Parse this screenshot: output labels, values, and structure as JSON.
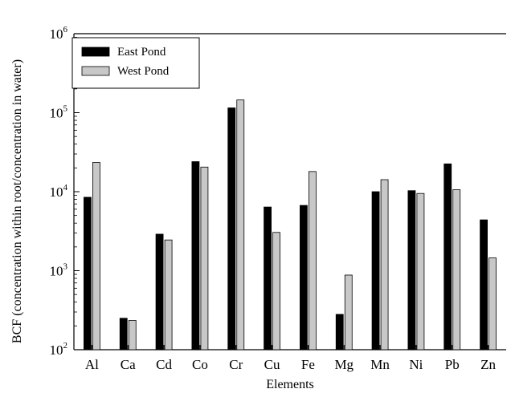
{
  "chart_data": {
    "type": "bar",
    "xlabel": "Elements",
    "ylabel": "BCF (concentration within root/concentration in water)",
    "yscale": "log",
    "ylim": [
      100,
      1000000
    ],
    "yticks": [
      {
        "base": "10",
        "exp": "2"
      },
      {
        "base": "10",
        "exp": "3"
      },
      {
        "base": "10",
        "exp": "4"
      },
      {
        "base": "10",
        "exp": "5"
      },
      {
        "base": "10",
        "exp": "6"
      }
    ],
    "legend_position": "top-left",
    "grid": false,
    "categories": [
      "Al",
      "Ca",
      "Cd",
      "Co",
      "Cr",
      "Cu",
      "Fe",
      "Mg",
      "Mn",
      "Ni",
      "Pb",
      "Zn"
    ],
    "series": [
      {
        "name": "East Pond",
        "color": "#000000",
        "values": [
          8500,
          250,
          2900,
          24000,
          115000,
          6400,
          6700,
          280,
          10000,
          10300,
          22500,
          4400
        ]
      },
      {
        "name": "West Pond",
        "color": "#c8c8c8",
        "values": [
          23500,
          235,
          2450,
          20500,
          145000,
          3050,
          18000,
          880,
          14200,
          9500,
          10600,
          1450
        ]
      }
    ]
  }
}
